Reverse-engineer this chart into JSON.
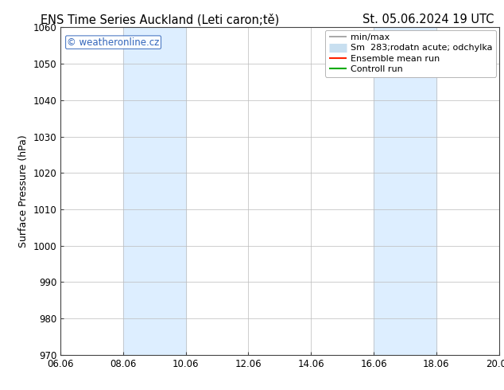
{
  "title_left": "ENS Time Series Auckland (Leti caron;tě)",
  "title_right": "St. 05.06.2024 19 UTC",
  "ylabel": "Surface Pressure (hPa)",
  "ylim": [
    970,
    1060
  ],
  "xtick_labels": [
    "06.06",
    "08.06",
    "10.06",
    "12.06",
    "14.06",
    "16.06",
    "18.06",
    "20.06"
  ],
  "xtick_values": [
    0,
    2,
    4,
    6,
    8,
    10,
    12,
    14
  ],
  "ytick_values": [
    970,
    980,
    990,
    1000,
    1010,
    1020,
    1030,
    1040,
    1050,
    1060
  ],
  "shade_regions": [
    {
      "xstart": 2,
      "xend": 4,
      "color": "#ddeeff"
    },
    {
      "xstart": 10,
      "xend": 12,
      "color": "#ddeeff"
    }
  ],
  "watermark": "© weatheronline.cz",
  "watermark_color": "#3366bb",
  "background_color": "#ffffff",
  "grid_color": "#bbbbbb",
  "legend_entries": [
    {
      "label": "min/max",
      "color": "#999999",
      "lw": 1.2
    },
    {
      "label": "Sm  283;rodatn acute; odchylka",
      "color": "#c8dff0",
      "lw": 8
    },
    {
      "label": "Ensemble mean run",
      "color": "#ff2200",
      "lw": 1.5
    },
    {
      "label": "Controll run",
      "color": "#00aa00",
      "lw": 1.5
    }
  ],
  "spine_color": "#444444",
  "tick_fontsize": 8.5,
  "label_fontsize": 9,
  "title_fontsize": 10.5,
  "legend_fontsize": 8
}
